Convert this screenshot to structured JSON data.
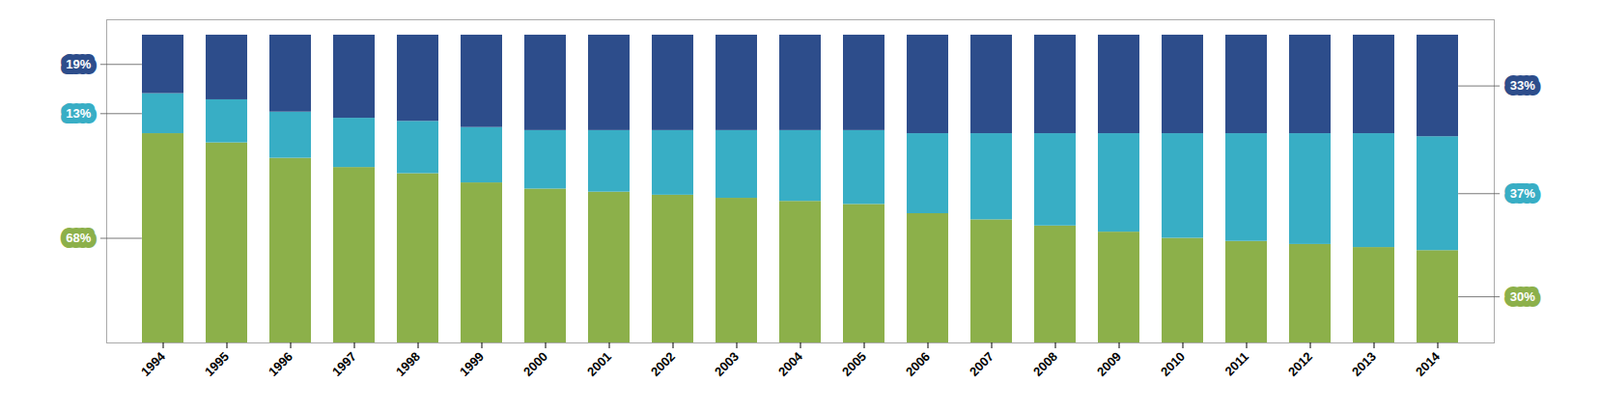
{
  "chart_data": {
    "type": "bar",
    "stacked": true,
    "categories": [
      "1994",
      "1995",
      "1996",
      "1997",
      "1998",
      "1999",
      "2000",
      "2001",
      "2002",
      "2003",
      "2004",
      "2005",
      "2006",
      "2007",
      "2008",
      "2009",
      "2010",
      "2011",
      "2012",
      "2013",
      "2014"
    ],
    "series": [
      {
        "color": "#8cb04a",
        "values": [
          68,
          65,
          60,
          57,
          55,
          52,
          50,
          49,
          48,
          47,
          46,
          45,
          42,
          40,
          38,
          36,
          34,
          33,
          32,
          31,
          30
        ],
        "value_labels": [
          "68%",
          null,
          null,
          null,
          null,
          null,
          null,
          null,
          null,
          null,
          null,
          null,
          null,
          null,
          null,
          null,
          null,
          null,
          null,
          null,
          "30%"
        ]
      },
      {
        "color": "#38aec5",
        "values": [
          13,
          14,
          15,
          16,
          17,
          18,
          19,
          20,
          21,
          22,
          23,
          24,
          26,
          28,
          30,
          32,
          34,
          35,
          36,
          37,
          37
        ],
        "value_labels": [
          "13%",
          null,
          null,
          null,
          null,
          null,
          null,
          null,
          null,
          null,
          null,
          null,
          null,
          null,
          null,
          null,
          null,
          null,
          null,
          null,
          "37%"
        ]
      },
      {
        "color": "#2d4d8b",
        "values": [
          19,
          21,
          25,
          27,
          28,
          30,
          31,
          31,
          31,
          31,
          31,
          31,
          32,
          32,
          32,
          32,
          32,
          32,
          32,
          32,
          33
        ],
        "value_labels": [
          "19%",
          null,
          null,
          null,
          null,
          null,
          null,
          null,
          null,
          null,
          null,
          null,
          null,
          null,
          null,
          null,
          null,
          null,
          null,
          null,
          "33%"
        ]
      }
    ],
    "ylim": [
      0,
      105
    ],
    "yticks": [],
    "tick_labels": "x",
    "data_labels": true,
    "grid": false
  }
}
